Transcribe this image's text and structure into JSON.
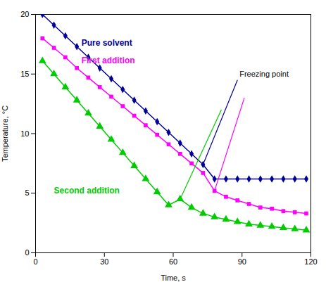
{
  "chart_data": {
    "type": "line",
    "xlabel": "Time, s",
    "ylabel": "Temperature, °C",
    "xlim": [
      0,
      120
    ],
    "ylim": [
      0,
      20
    ],
    "xticks": [
      0,
      30,
      60,
      90,
      120
    ],
    "yticks": [
      0,
      5,
      10,
      15,
      20
    ],
    "grid": false,
    "x": [
      3,
      8,
      13,
      18,
      23,
      28,
      33,
      38,
      43,
      48,
      53,
      58,
      63,
      68,
      73,
      78,
      83,
      88,
      93,
      98,
      103,
      108,
      113,
      118
    ],
    "series": [
      {
        "name": "Pure solvent",
        "color": "#000099",
        "marker": "diamond",
        "values": [
          20.0,
          19.1,
          18.2,
          17.3,
          16.4,
          15.5,
          14.6,
          13.7,
          12.8,
          11.9,
          11.0,
          10.1,
          9.2,
          8.3,
          7.4,
          6.2,
          6.2,
          6.2,
          6.2,
          6.2,
          6.2,
          6.2,
          6.2,
          6.2
        ]
      },
      {
        "name": "First addition",
        "color": "#FF00FF",
        "marker": "square",
        "values": [
          18.0,
          17.2,
          16.4,
          15.5,
          14.7,
          13.9,
          13.1,
          12.3,
          11.5,
          10.7,
          9.9,
          9.1,
          8.3,
          7.5,
          6.7,
          5.2,
          4.7,
          4.4,
          4.1,
          3.8,
          3.7,
          3.5,
          3.4,
          3.3
        ]
      },
      {
        "name": "Second addition",
        "color": "#00CC00",
        "marker": "triangle",
        "values": [
          16.1,
          15.0,
          13.9,
          12.8,
          11.7,
          10.6,
          9.5,
          8.4,
          7.3,
          6.2,
          5.1,
          4.0,
          4.5,
          3.8,
          3.3,
          3.0,
          2.8,
          2.6,
          2.4,
          2.3,
          2.2,
          2.1,
          2.0,
          1.9
        ]
      }
    ],
    "annotations": [
      {
        "text": "Freezing point",
        "x": 88,
        "y": 14.0,
        "points": [
          {
            "series": "Pure solvent",
            "x": 73,
            "y": 7.4
          },
          {
            "series": "First addition",
            "x": 78,
            "y": 5.2
          },
          {
            "series": "Second addition",
            "x": 63,
            "y": 4.5
          }
        ]
      },
      {
        "text": "Pure solvent",
        "series": "Pure solvent",
        "x": 20,
        "y": 17.6
      },
      {
        "text": "First addition",
        "series": "First addition",
        "x": 20,
        "y": 16.1
      },
      {
        "text": "Second addition",
        "series": "Second addition",
        "x": 8,
        "y": 5.2
      }
    ]
  }
}
